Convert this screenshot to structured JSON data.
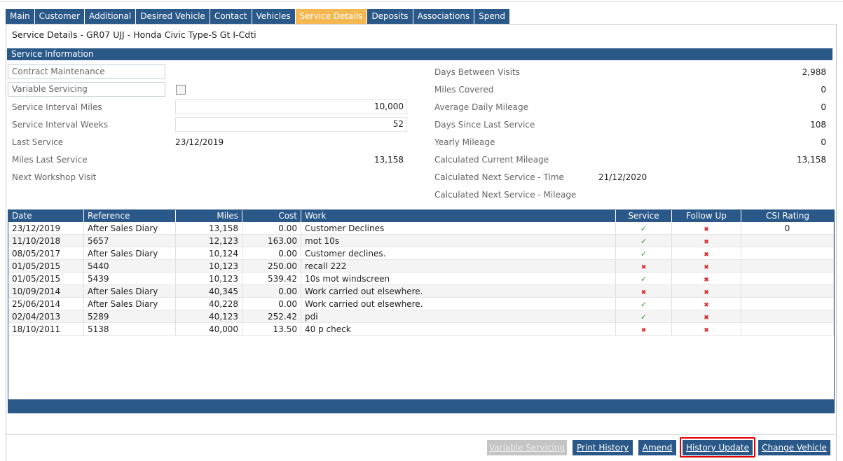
{
  "tabs": [
    {
      "label": "Main"
    },
    {
      "label": "Customer"
    },
    {
      "label": "Additional"
    },
    {
      "label": "Desired Vehicle"
    },
    {
      "label": "Contact"
    },
    {
      "label": "Vehicles"
    },
    {
      "label": "Service Details"
    },
    {
      "label": "Deposits"
    },
    {
      "label": "Associations"
    },
    {
      "label": "Spend"
    }
  ],
  "page_title": "Service Details - GR07 UJJ - Honda Civic Type-S Gt I-Cdti",
  "section_title": "Service Information",
  "left_fields": {
    "contract_maintenance": "Contract Maintenance",
    "variable_servicing": "Variable Servicing",
    "service_interval_miles_label": "Service Interval Miles",
    "service_interval_miles_value": "10,000",
    "service_interval_weeks_label": "Service Interval Weeks",
    "service_interval_weeks_value": "52",
    "last_service_label": "Last Service",
    "last_service_value": "23/12/2019",
    "miles_last_service_label": "Miles Last Service",
    "miles_last_service_value": "13,158",
    "next_workshop_visit_label": "Next Workshop Visit"
  },
  "right_fields": {
    "days_between_visits_label": "Days Between Visits",
    "days_between_visits_value": "2,988",
    "miles_covered_label": "Miles Covered",
    "miles_covered_value": "0",
    "average_daily_mileage_label": "Average Daily Mileage",
    "average_daily_mileage_value": "0",
    "days_since_last_service_label": "Days Since Last Service",
    "days_since_last_service_value": "108",
    "yearly_mileage_label": "Yearly Mileage",
    "yearly_mileage_value": "0",
    "calculated_current_mileage_label": "Calculated Current Mileage",
    "calculated_current_mileage_value": "13,158",
    "calc_next_service_time_label": "Calculated Next Service - Time",
    "calc_next_service_time_value": "21/12/2020",
    "calc_next_service_mileage_label": "Calculated Next Service - Mileage"
  },
  "grid": {
    "headers": {
      "date": "Date",
      "reference": "Reference",
      "miles": "Miles",
      "cost": "Cost",
      "work": "Work",
      "service": "Service",
      "follow_up": "Follow Up",
      "csi_rating": "CSI Rating"
    },
    "rows": [
      {
        "date": "23/12/2019",
        "reference": "After Sales Diary",
        "miles": "13,158",
        "cost": "0.00",
        "work": "Customer Declines",
        "service": "✓",
        "follow_up": "✖",
        "csi": "0"
      },
      {
        "date": "11/10/2018",
        "reference": "5657",
        "miles": "12,123",
        "cost": "163.00",
        "work": "mot 10s",
        "service": "✓",
        "follow_up": "✖",
        "csi": ""
      },
      {
        "date": "08/05/2017",
        "reference": "After Sales Diary",
        "miles": "10,124",
        "cost": "0.00",
        "work": "Customer declines.",
        "service": "✓",
        "follow_up": "✖",
        "csi": ""
      },
      {
        "date": "01/05/2015",
        "reference": "5440",
        "miles": "10,123",
        "cost": "250.00",
        "work": "recall 222",
        "service": "✖",
        "follow_up": "✖",
        "csi": ""
      },
      {
        "date": "01/05/2015",
        "reference": "5439",
        "miles": "10,123",
        "cost": "539.42",
        "work": "10s mot windscreen",
        "service": "✓",
        "follow_up": "✖",
        "csi": ""
      },
      {
        "date": "10/09/2014",
        "reference": "After Sales Diary",
        "miles": "40,345",
        "cost": "0.00",
        "work": "Work carried out elsewhere.",
        "service": "✖",
        "follow_up": "✖",
        "csi": ""
      },
      {
        "date": "25/06/2014",
        "reference": "After Sales Diary",
        "miles": "40,228",
        "cost": "0.00",
        "work": "Work carried out elsewhere.",
        "service": "✓",
        "follow_up": "✖",
        "csi": ""
      },
      {
        "date": "02/04/2013",
        "reference": "5289",
        "miles": "40,123",
        "cost": "252.42",
        "work": "pdi",
        "service": "✓",
        "follow_up": "✖",
        "csi": ""
      },
      {
        "date": "18/10/2011",
        "reference": "5138",
        "miles": "40,000",
        "cost": "13.50",
        "work": "40 p check",
        "service": "✖",
        "follow_up": "✖",
        "csi": ""
      }
    ]
  },
  "buttons": {
    "variable_servicing": "Variable Servicing",
    "print_history": "Print History",
    "amend": "Amend",
    "history_update": "History Update",
    "change_vehicle": "Change Vehicle"
  },
  "colors": {
    "primary": "#2a5889",
    "active_tab": "#f5b750",
    "tick": "#2f9a2f",
    "cross": "#e02020",
    "highlight": "#e00000"
  }
}
